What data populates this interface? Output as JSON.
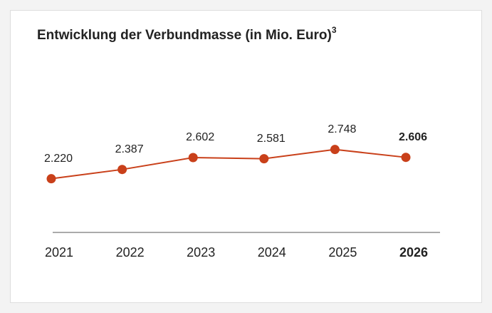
{
  "chart_data": {
    "type": "line",
    "title": "Entwicklung der Verbundmasse  (in Mio. Euro)",
    "title_footnote": "3",
    "categories": [
      "2021",
      "2022",
      "2023",
      "2024",
      "2025",
      "2026"
    ],
    "values": [
      2220,
      2387,
      2602,
      2581,
      2748,
      2606
    ],
    "value_labels": [
      "2.220",
      "2.387",
      "2.602",
      "2.581",
      "2.748",
      "2.606"
    ],
    "color": "#c9401a",
    "ylim": [
      1250,
      4160
    ],
    "bold_last": true
  }
}
